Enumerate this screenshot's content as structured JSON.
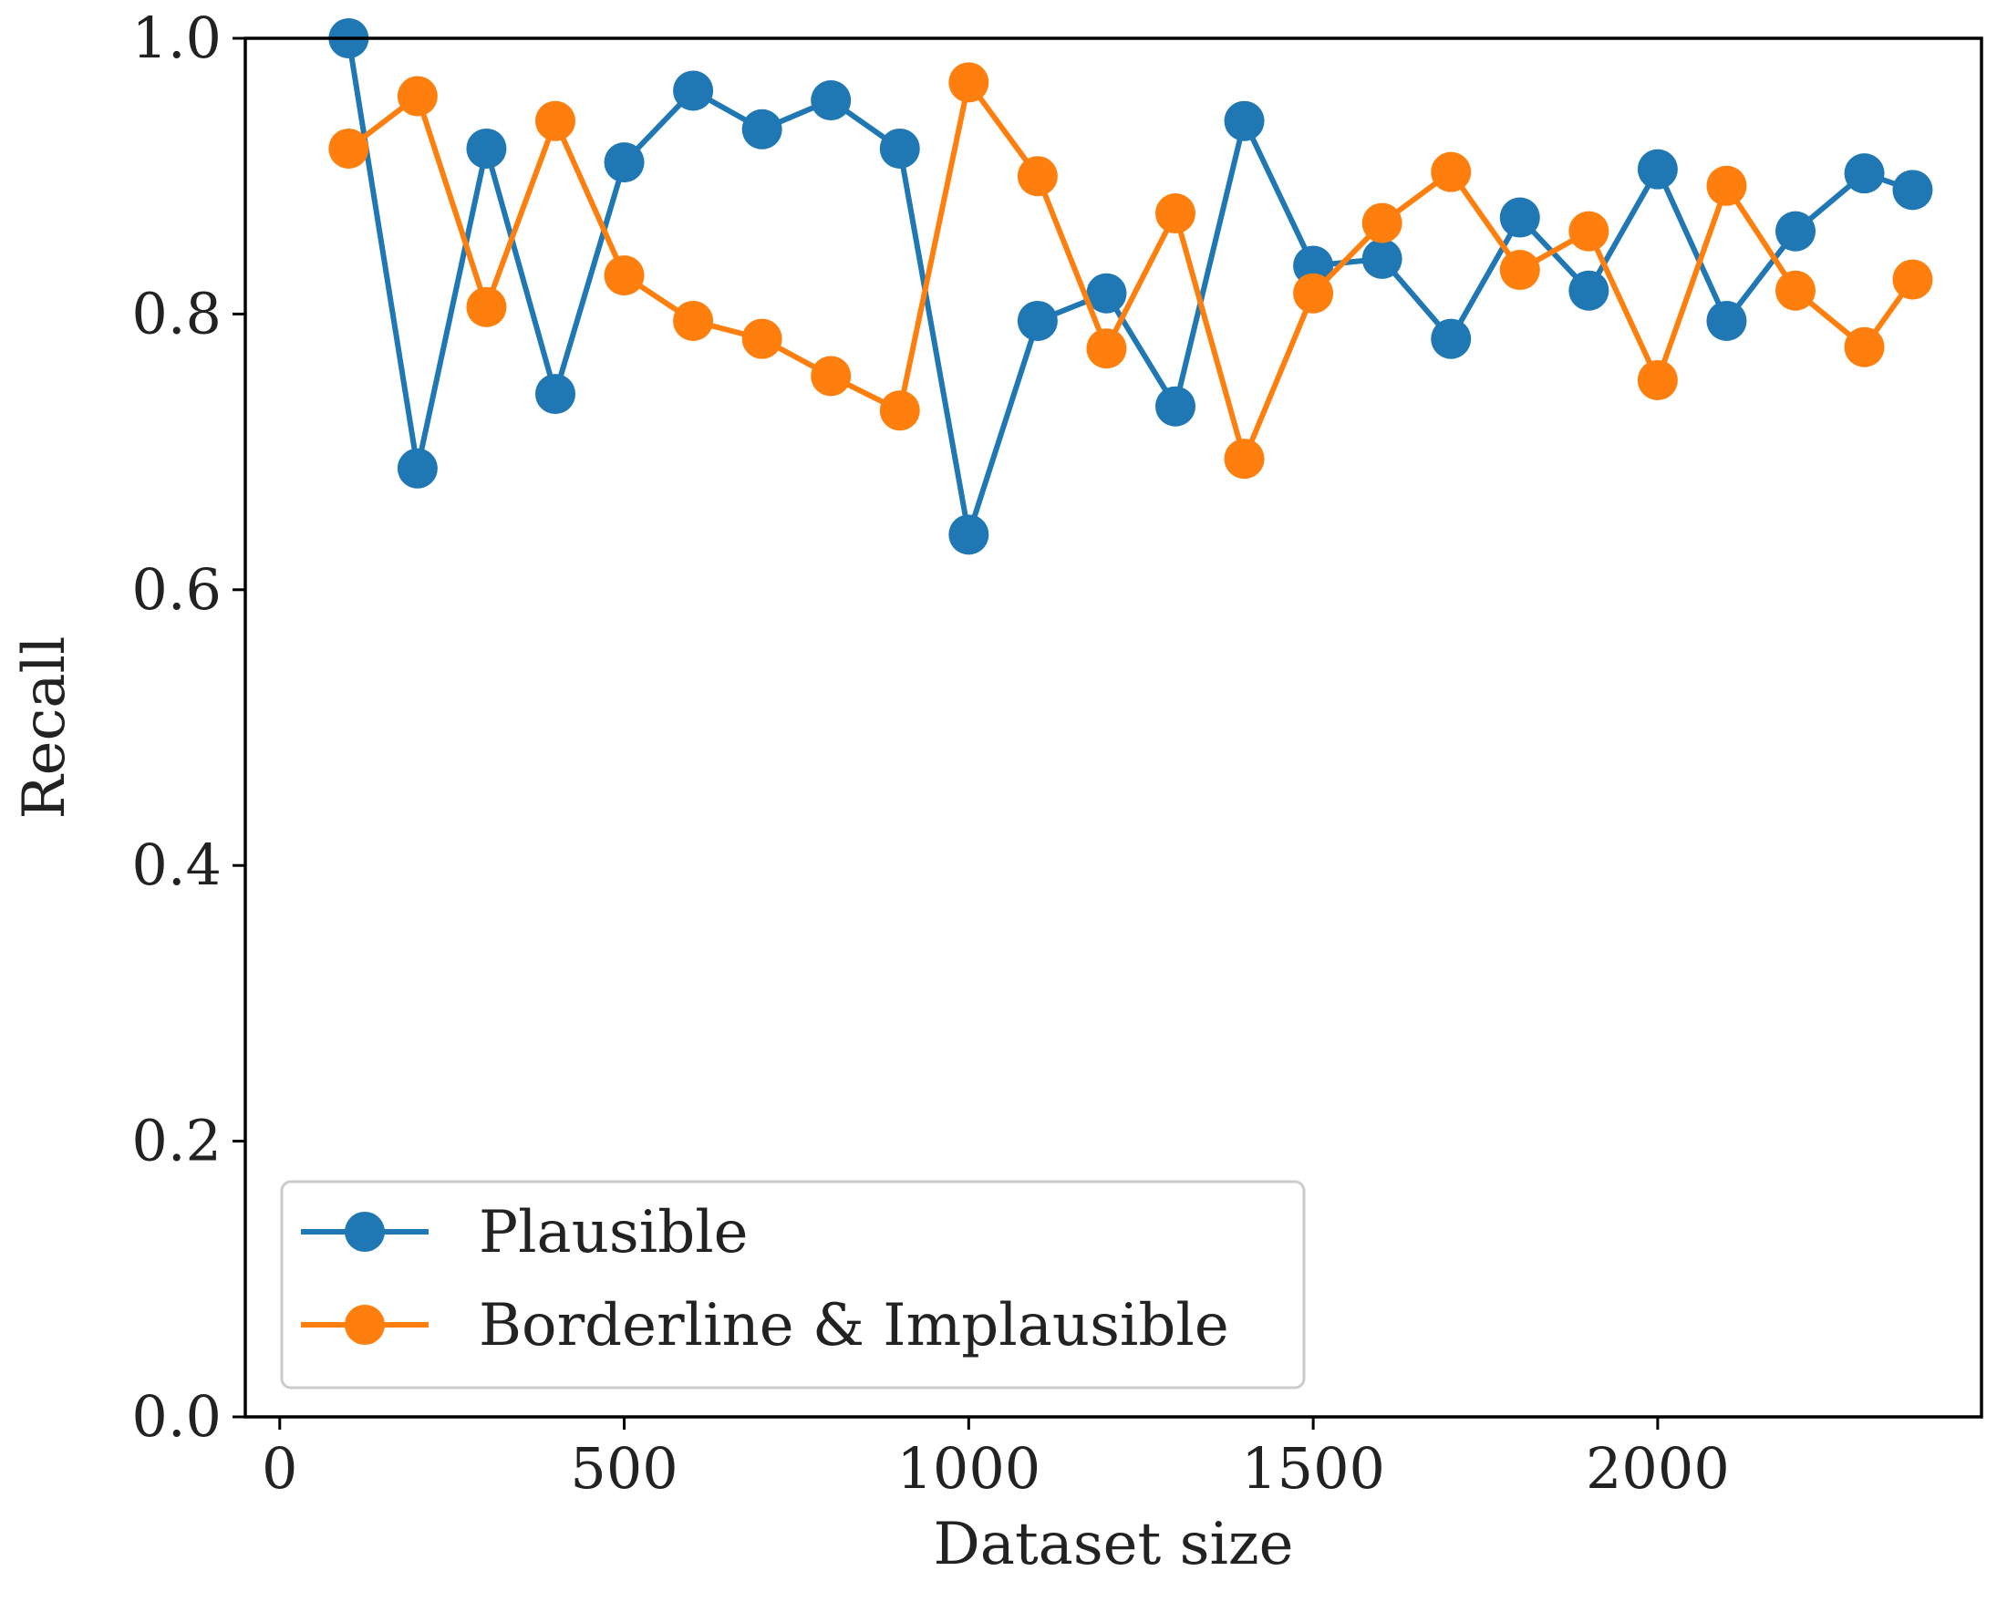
{
  "chart_data": {
    "type": "line",
    "title": "",
    "xlabel": "Dataset size",
    "ylabel": "Recall",
    "xlim": [
      -50,
      2470
    ],
    "ylim": [
      0.0,
      1.0
    ],
    "xticks": [
      0,
      500,
      1000,
      1500,
      2000
    ],
    "xtick_labels": [
      "0",
      "500",
      "1000",
      "1500",
      "2000"
    ],
    "yticks": [
      0.0,
      0.2,
      0.4,
      0.6,
      0.8,
      1.0
    ],
    "ytick_labels": [
      "0.0",
      "0.2",
      "0.4",
      "0.6",
      "0.8",
      "1.0"
    ],
    "grid": false,
    "legend_position": "lower-left",
    "x": [
      100,
      200,
      300,
      400,
      500,
      600,
      700,
      800,
      900,
      1000,
      1100,
      1200,
      1300,
      1400,
      1500,
      1600,
      1700,
      1800,
      1900,
      2000,
      2100,
      2200,
      2300,
      2370
    ],
    "series": [
      {
        "name": "Plausible",
        "color": "#1f77b4",
        "marker": "circle",
        "values": [
          1.0,
          0.688,
          0.92,
          0.742,
          0.91,
          0.962,
          0.934,
          0.955,
          0.92,
          0.64,
          0.795,
          0.815,
          0.733,
          0.94,
          0.835,
          0.84,
          0.782,
          0.87,
          0.817,
          0.905,
          0.795,
          0.86,
          0.902,
          0.89
        ]
      },
      {
        "name": "Borderline & Implausible",
        "color": "#ff7f0e",
        "marker": "circle",
        "values": [
          0.92,
          0.958,
          0.805,
          0.94,
          0.828,
          0.795,
          0.782,
          0.755,
          0.73,
          0.968,
          0.9,
          0.775,
          0.873,
          0.695,
          0.815,
          0.866,
          0.903,
          0.832,
          0.86,
          0.752,
          0.893,
          0.817,
          0.776,
          0.825
        ]
      }
    ]
  }
}
